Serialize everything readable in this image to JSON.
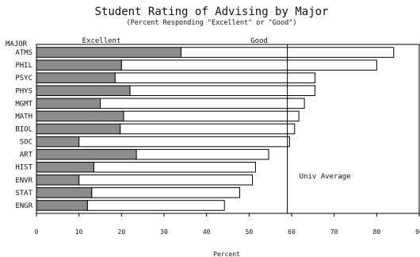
{
  "chart_data": {
    "type": "bar",
    "orientation": "horizontal",
    "stacked": true,
    "title": "Student Rating of Advising by Major",
    "subtitle": "(Percent Responding \"Excellent\" or \"Good\")",
    "category_axis_label": "MAJOR",
    "xlabel": "Percent",
    "xlim": [
      0,
      90
    ],
    "xticks": [
      0,
      10,
      20,
      30,
      40,
      50,
      60,
      70,
      80,
      90
    ],
    "categories": [
      "ATMS",
      "PHIL",
      "PSYC",
      "PHYS",
      "MGMT",
      "MATH",
      "BIOL",
      "SOC",
      "ART",
      "HIST",
      "ENVR",
      "STAT",
      "ENGR"
    ],
    "series": [
      {
        "name": "Excellent",
        "color": "#8c8c8c",
        "values": [
          34,
          20,
          18.5,
          22,
          15,
          20.5,
          19.7,
          10,
          23.5,
          13.5,
          10,
          13,
          12
        ]
      },
      {
        "name": "Good",
        "color": "#ffffff",
        "values": [
          50,
          60,
          47,
          43.5,
          48,
          41.2,
          41,
          49.5,
          31.1,
          38,
          40.8,
          34.8,
          32.2
        ]
      }
    ],
    "reference_line": {
      "value": 59,
      "label": "Univ Average"
    }
  }
}
